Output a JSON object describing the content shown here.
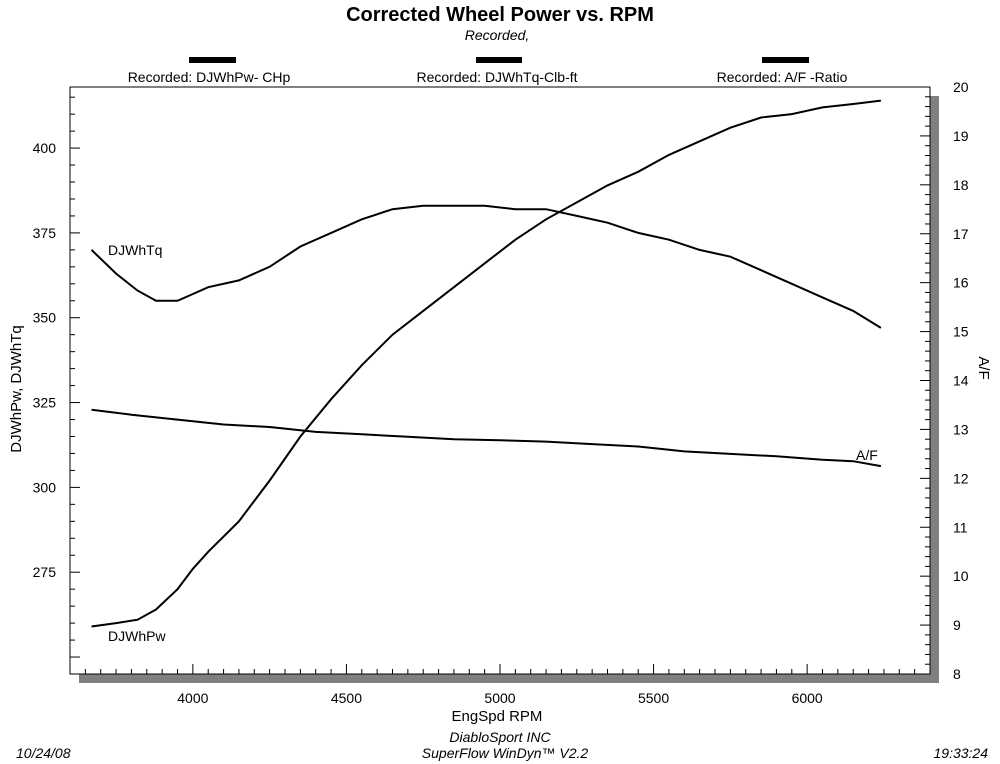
{
  "chart_data": {
    "type": "line",
    "title": "Corrected Wheel Power vs. RPM",
    "subtitle": "Recorded,",
    "xlabel": "EngSpd  RPM",
    "ylabel_left": "DJWhPw, DJWhTq",
    "ylabel_right": "A/F",
    "xlim": [
      3600,
      6400
    ],
    "ylim_left": [
      245,
      418
    ],
    "ylim_right": [
      8,
      20
    ],
    "x_ticks": [
      "4000",
      "4500",
      "5000",
      "5500",
      "6000"
    ],
    "y_left_ticks": [
      "275",
      "300",
      "325",
      "350",
      "375",
      "400"
    ],
    "y_right_ticks": [
      "8",
      "9",
      "10",
      "11",
      "12",
      "13",
      "14",
      "15",
      "16",
      "17",
      "18",
      "19",
      "20"
    ],
    "grid": false,
    "legend_position": "top",
    "legend": [
      {
        "label": "Recorded: DJWhPw- CHp"
      },
      {
        "label": "Recorded: DJWhTq-Clb-ft"
      },
      {
        "label": "Recorded:  A/F  -Ratio"
      }
    ],
    "series": [
      {
        "name": "DJWhPw",
        "axis": "left",
        "x": [
          3670,
          3750,
          3820,
          3880,
          3950,
          4000,
          4050,
          4150,
          4250,
          4350,
          4450,
          4550,
          4650,
          4750,
          4850,
          4950,
          5050,
          5150,
          5250,
          5350,
          5450,
          5550,
          5650,
          5750,
          5850,
          5950,
          6050,
          6150,
          6240
        ],
        "values": [
          259,
          260,
          261,
          264,
          270,
          276,
          281,
          290,
          302,
          315,
          326,
          336,
          345,
          352,
          359,
          366,
          373,
          379,
          384,
          389,
          393,
          398,
          402,
          406,
          409,
          410,
          412,
          413,
          414
        ]
      },
      {
        "name": "DJWhTq",
        "axis": "left",
        "x": [
          3670,
          3750,
          3820,
          3880,
          3950,
          4000,
          4050,
          4150,
          4250,
          4350,
          4450,
          4550,
          4650,
          4750,
          4850,
          4950,
          5050,
          5150,
          5250,
          5350,
          5450,
          5550,
          5650,
          5750,
          5850,
          5950,
          6050,
          6150,
          6240
        ],
        "values": [
          370,
          363,
          358,
          355,
          355,
          357,
          359,
          361,
          365,
          371,
          375,
          379,
          382,
          383,
          383,
          383,
          382,
          382,
          380,
          378,
          375,
          373,
          370,
          368,
          364,
          360,
          356,
          352,
          347
        ]
      },
      {
        "name": "A/F",
        "axis": "right",
        "x": [
          3670,
          3800,
          3950,
          4100,
          4250,
          4400,
          4550,
          4700,
          4850,
          5000,
          5150,
          5300,
          5450,
          5600,
          5750,
          5900,
          6050,
          6150,
          6240
        ],
        "values": [
          13.4,
          13.3,
          13.2,
          13.1,
          13.05,
          12.95,
          12.9,
          12.85,
          12.8,
          12.78,
          12.75,
          12.7,
          12.65,
          12.55,
          12.5,
          12.45,
          12.38,
          12.35,
          12.25
        ]
      }
    ],
    "series_labels": [
      {
        "text": "DJWhTq",
        "series": "DJWhTq"
      },
      {
        "text": "DJWhPw",
        "series": "DJWhPw"
      },
      {
        "text": "A/F",
        "series": "A/F"
      }
    ]
  },
  "footer": {
    "date": "10/24/08",
    "company": "DiabloSport INC",
    "software": "SuperFlow WinDyn™ V2.2",
    "time": "19:33:24"
  },
  "colors": {
    "line": "#000000",
    "shadow": "#7f7f7f",
    "background": "#ffffff"
  }
}
